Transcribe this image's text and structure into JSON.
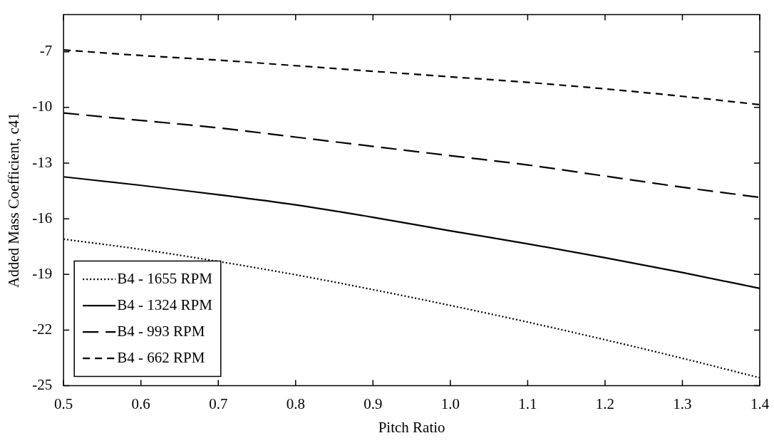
{
  "chart_data": {
    "type": "line",
    "xlabel": "Pitch Ratio",
    "ylabel": "Added Mass Coefficient, c41",
    "x": [
      0.5,
      0.6,
      0.7,
      0.8,
      0.9,
      1.0,
      1.1,
      1.2,
      1.3,
      1.4
    ],
    "series": [
      {
        "name": "B4 - 1655 RPM",
        "color": "#000000",
        "line_style": "dotted",
        "values": [
          -17.1,
          -17.65,
          -18.3,
          -19.02,
          -19.82,
          -20.67,
          -21.57,
          -22.52,
          -23.52,
          -24.57
        ]
      },
      {
        "name": "B4 - 1324 RPM",
        "color": "#000000",
        "line_style": "solid",
        "values": [
          -13.74,
          -14.2,
          -14.7,
          -15.25,
          -15.92,
          -16.65,
          -17.35,
          -18.1,
          -18.9,
          -19.75
        ]
      },
      {
        "name": "B4 - 993 RPM",
        "color": "#000000",
        "line_style": "dashed",
        "values": [
          -10.3,
          -10.7,
          -11.1,
          -11.6,
          -12.1,
          -12.6,
          -13.1,
          -13.7,
          -14.3,
          -14.85
        ]
      },
      {
        "name": "B4 - 662 RPM",
        "color": "#000000",
        "line_style": "dashed",
        "values": [
          -6.9,
          -7.2,
          -7.45,
          -7.75,
          -8.05,
          -8.35,
          -8.65,
          -9.0,
          -9.4,
          -9.85
        ]
      }
    ],
    "xlim": [
      0.5,
      1.4
    ],
    "xticks": [
      0.5,
      0.6,
      0.7,
      0.8,
      0.9,
      {
        "value": 1.0,
        "label": "1.0"
      },
      1.1,
      1.2,
      1.3,
      1.4
    ],
    "ylim": [
      -25,
      -5
    ],
    "yticks": [
      -25,
      -22,
      -19,
      -16,
      -13,
      -10,
      -7
    ],
    "legend": "bottom left"
  }
}
